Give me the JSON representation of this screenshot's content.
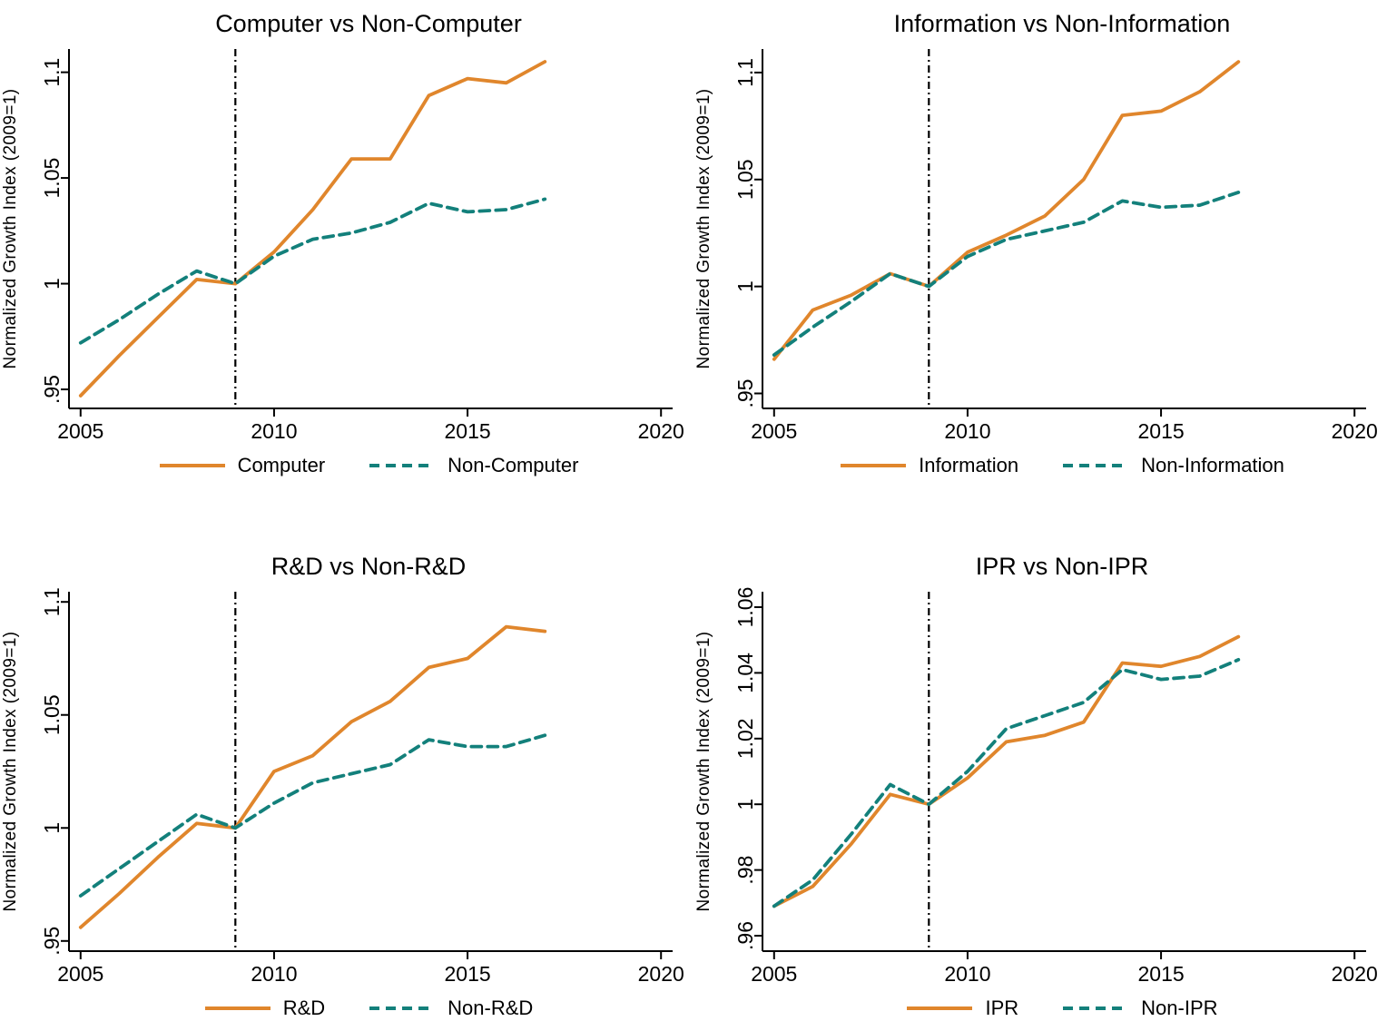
{
  "page": {
    "background": "#ffffff"
  },
  "shared": {
    "ylabel": "Normalized Growth Index (2009=1)",
    "accent_orange": "#E0862C",
    "accent_teal": "#13807B",
    "refline_color": "#000000"
  },
  "chart_data": [
    {
      "type": "line",
      "title": "Computer vs Non-Computer",
      "ylabel": "Normalized Growth Index (2009=1)",
      "x": [
        2005,
        2006,
        2007,
        2008,
        2009,
        2010,
        2011,
        2012,
        2013,
        2014,
        2015,
        2016,
        2017
      ],
      "series": [
        {
          "name": "Computer",
          "color": "#E0862C",
          "dash": "none",
          "values": [
            0.947,
            0.966,
            0.984,
            1.002,
            1.0,
            1.015,
            1.035,
            1.059,
            1.059,
            1.089,
            1.097,
            1.095,
            1.105
          ]
        },
        {
          "name": "Non-Computer",
          "color": "#13807B",
          "dash": "11 7",
          "values": [
            0.972,
            0.983,
            0.995,
            1.006,
            1.0,
            1.013,
            1.021,
            1.024,
            1.029,
            1.038,
            1.034,
            1.035,
            1.04
          ]
        }
      ],
      "xlim": [
        2004.7,
        2020.3
      ],
      "ylim": [
        0.941,
        1.111
      ],
      "xticks": [
        2005,
        2010,
        2015,
        2020
      ],
      "xtick_labels": [
        "2005",
        "2010",
        "2015",
        "2020"
      ],
      "yticks": [
        0.95,
        1.0,
        1.05,
        1.1
      ],
      "ytick_labels": [
        ".95",
        "1",
        "1.05",
        "1.1"
      ],
      "refline_x": 2009,
      "refline_color": "#000000",
      "grid": false,
      "legend_position": "bottom"
    },
    {
      "type": "line",
      "title": "Information vs Non-Information",
      "ylabel": "Normalized Growth Index (2009=1)",
      "x": [
        2005,
        2006,
        2007,
        2008,
        2009,
        2010,
        2011,
        2012,
        2013,
        2014,
        2015,
        2016,
        2017
      ],
      "series": [
        {
          "name": "Information",
          "color": "#E0862C",
          "dash": "none",
          "values": [
            0.966,
            0.989,
            0.996,
            1.006,
            1.0,
            1.016,
            1.024,
            1.033,
            1.05,
            1.08,
            1.082,
            1.091,
            1.105
          ]
        },
        {
          "name": "Non-Information",
          "color": "#13807B",
          "dash": "11 7",
          "values": [
            0.968,
            0.981,
            0.993,
            1.006,
            1.0,
            1.014,
            1.022,
            1.026,
            1.03,
            1.04,
            1.037,
            1.038,
            1.044
          ]
        }
      ],
      "xlim": [
        2004.7,
        2020.3
      ],
      "ylim": [
        0.943,
        1.111
      ],
      "xticks": [
        2005,
        2010,
        2015,
        2020
      ],
      "xtick_labels": [
        "2005",
        "2010",
        "2015",
        "2020"
      ],
      "yticks": [
        0.95,
        1.0,
        1.05,
        1.1
      ],
      "ytick_labels": [
        ".95",
        "1",
        "1.05",
        "1.1"
      ],
      "refline_x": 2009,
      "refline_color": "#000000",
      "grid": false,
      "legend_position": "bottom"
    },
    {
      "type": "line",
      "title": "R&D vs Non-R&D",
      "ylabel": "Normalized Growth Index (2009=1)",
      "x": [
        2005,
        2006,
        2007,
        2008,
        2009,
        2010,
        2011,
        2012,
        2013,
        2014,
        2015,
        2016,
        2017
      ],
      "series": [
        {
          "name": "R&D",
          "color": "#E0862C",
          "dash": "none",
          "values": [
            0.956,
            0.971,
            0.987,
            1.002,
            1.0,
            1.025,
            1.032,
            1.047,
            1.056,
            1.071,
            1.075,
            1.089,
            1.087
          ]
        },
        {
          "name": "Non-R&D",
          "color": "#13807B",
          "dash": "11 7",
          "values": [
            0.97,
            0.982,
            0.994,
            1.006,
            1.0,
            1.011,
            1.02,
            1.024,
            1.028,
            1.039,
            1.036,
            1.036,
            1.041
          ]
        }
      ],
      "xlim": [
        2004.7,
        2020.3
      ],
      "ylim": [
        0.9455,
        1.1045
      ],
      "xticks": [
        2005,
        2010,
        2015,
        2020
      ],
      "xtick_labels": [
        "2005",
        "2010",
        "2015",
        "2020"
      ],
      "yticks": [
        0.95,
        1.0,
        1.05,
        1.1
      ],
      "ytick_labels": [
        ".95",
        "1",
        "1.05",
        "1.1"
      ],
      "refline_x": 2009,
      "refline_color": "#000000",
      "grid": false,
      "legend_position": "bottom"
    },
    {
      "type": "line",
      "title": "IPR vs Non-IPR",
      "ylabel": "Normalized Growth Index (2009=1)",
      "x": [
        2005,
        2006,
        2007,
        2008,
        2009,
        2010,
        2011,
        2012,
        2013,
        2014,
        2015,
        2016,
        2017
      ],
      "series": [
        {
          "name": "IPR",
          "color": "#E0862C",
          "dash": "none",
          "values": [
            0.969,
            0.975,
            0.988,
            1.003,
            1.0,
            1.008,
            1.019,
            1.021,
            1.025,
            1.043,
            1.042,
            1.045,
            1.051
          ]
        },
        {
          "name": "Non-IPR",
          "color": "#13807B",
          "dash": "11 7",
          "values": [
            0.969,
            0.977,
            0.991,
            1.006,
            1.0,
            1.01,
            1.023,
            1.027,
            1.031,
            1.041,
            1.038,
            1.039,
            1.044
          ]
        }
      ],
      "xlim": [
        2004.7,
        2020.3
      ],
      "ylim": [
        0.9553,
        1.0647
      ],
      "xticks": [
        2005,
        2010,
        2015,
        2020
      ],
      "xtick_labels": [
        "2005",
        "2010",
        "2015",
        "2020"
      ],
      "yticks": [
        0.96,
        0.98,
        1.0,
        1.02,
        1.04,
        1.06
      ],
      "ytick_labels": [
        ".96",
        ".98",
        "1",
        "1.02",
        "1.04",
        "1.06"
      ],
      "refline_x": 2009,
      "refline_color": "#000000",
      "grid": false,
      "legend_position": "bottom"
    }
  ]
}
